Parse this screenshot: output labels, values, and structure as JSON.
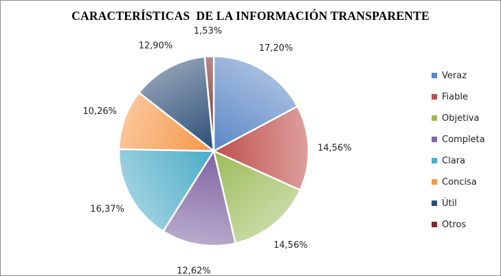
{
  "chart_data": {
    "type": "pie",
    "title": "CARACTERÍSTICAS  DE LA INFORMACIÓN TRANSPARENTE",
    "legend_position": "right",
    "slices": [
      {
        "name": "Veraz",
        "value": 17.2,
        "label": "17,20%",
        "color": "#5b87c6"
      },
      {
        "name": "Fiable",
        "value": 14.56,
        "label": "14,56%",
        "color": "#c0504d"
      },
      {
        "name": "Objetiva",
        "value": 14.56,
        "label": "14,56%",
        "color": "#9bbb59"
      },
      {
        "name": "Completa",
        "value": 12.62,
        "label": "12,62%",
        "color": "#8064a2"
      },
      {
        "name": "Clara",
        "value": 16.37,
        "label": "16,37%",
        "color": "#4bacc6"
      },
      {
        "name": "Concisa",
        "value": 10.26,
        "label": "10,26%",
        "color": "#f79646"
      },
      {
        "name": "Útil",
        "value": 12.9,
        "label": "12,90%",
        "color": "#2c4d75"
      },
      {
        "name": "Otros",
        "value": 1.53,
        "label": "1,53%",
        "color": "#772c2a"
      }
    ]
  }
}
